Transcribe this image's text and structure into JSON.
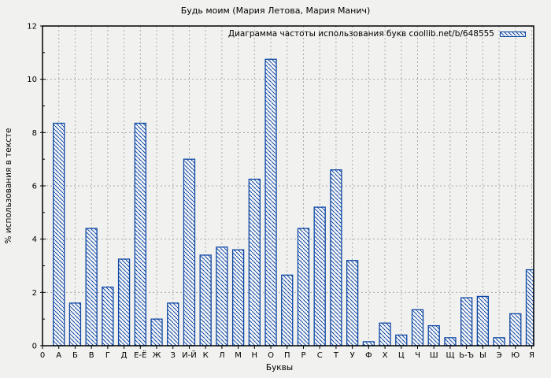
{
  "chart_data": {
    "type": "bar",
    "title": "Будь моим (Мария Летова, Мария Манич)",
    "legend_label": "Диаграмма частоты использования букв coollib.net/b/648555",
    "xlabel": "Буквы",
    "ylabel": "% использования в тексте",
    "origin_label": "0",
    "categories": [
      "А",
      "Б",
      "В",
      "Г",
      "Д",
      "Е-Ё",
      "Ж",
      "З",
      "И-Й",
      "К",
      "Л",
      "М",
      "Н",
      "О",
      "П",
      "Р",
      "С",
      "Т",
      "У",
      "Ф",
      "Х",
      "Ц",
      "Ч",
      "Ш",
      "Щ",
      "Ь-Ъ",
      "Ы",
      "Э",
      "Ю",
      "Я"
    ],
    "values": [
      8.35,
      1.6,
      4.4,
      2.2,
      3.25,
      8.35,
      1.0,
      1.6,
      7.0,
      3.4,
      3.7,
      3.6,
      6.25,
      10.75,
      2.65,
      4.4,
      5.2,
      6.6,
      3.2,
      0.15,
      0.85,
      0.4,
      1.35,
      0.75,
      0.3,
      1.8,
      1.85,
      0.3,
      1.2,
      2.85
    ],
    "ylim": [
      0,
      12
    ],
    "yticks": [
      0,
      2,
      4,
      6,
      8,
      10,
      12
    ],
    "grid": true,
    "legend_position": "top-right",
    "bar_style": "diagonal-hatch",
    "colors": {
      "bar_border": "#0d47a4",
      "bar_fill": "#f7f7f7",
      "background": "#f1f1f0",
      "grid": "#a9a9a9",
      "axis": "#000000",
      "text": "#000000"
    }
  }
}
